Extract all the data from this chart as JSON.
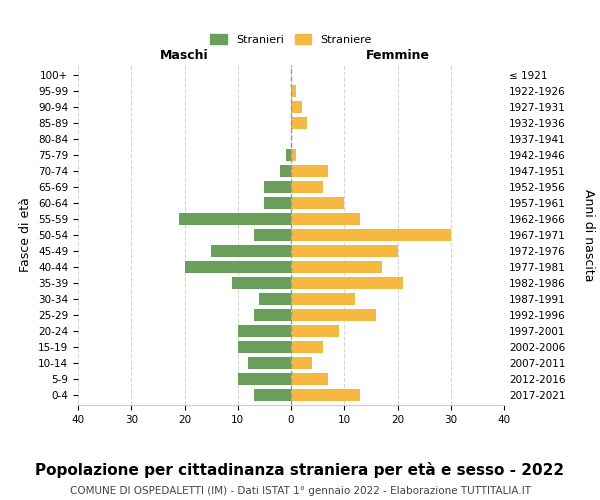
{
  "age_groups": [
    "0-4",
    "5-9",
    "10-14",
    "15-19",
    "20-24",
    "25-29",
    "30-34",
    "35-39",
    "40-44",
    "45-49",
    "50-54",
    "55-59",
    "60-64",
    "65-69",
    "70-74",
    "75-79",
    "80-84",
    "85-89",
    "90-94",
    "95-99",
    "100+"
  ],
  "birth_years": [
    "2017-2021",
    "2012-2016",
    "2007-2011",
    "2002-2006",
    "1997-2001",
    "1992-1996",
    "1987-1991",
    "1982-1986",
    "1977-1981",
    "1972-1976",
    "1967-1971",
    "1962-1966",
    "1957-1961",
    "1952-1956",
    "1947-1951",
    "1942-1946",
    "1937-1941",
    "1932-1936",
    "1927-1931",
    "1922-1926",
    "≤ 1921"
  ],
  "maschi": [
    7,
    10,
    8,
    10,
    10,
    7,
    6,
    11,
    20,
    15,
    7,
    21,
    5,
    5,
    2,
    1,
    0,
    0,
    0,
    0,
    0
  ],
  "femmine": [
    13,
    7,
    4,
    6,
    9,
    16,
    12,
    21,
    17,
    20,
    30,
    13,
    10,
    6,
    7,
    1,
    0,
    3,
    2,
    1,
    0
  ],
  "maschi_color": "#6a9e5b",
  "femmine_color": "#f5b942",
  "background_color": "#ffffff",
  "grid_color": "#cccccc",
  "title": "Popolazione per cittadinanza straniera per età e sesso - 2022",
  "subtitle": "COMUNE DI OSPEDALETTI (IM) - Dati ISTAT 1° gennaio 2022 - Elaborazione TUTTITALIA.IT",
  "xlabel_left": "Maschi",
  "xlabel_right": "Femmine",
  "ylabel_left": "Fasce di età",
  "ylabel_right": "Anni di nascita",
  "legend_maschi": "Stranieri",
  "legend_femmine": "Straniere",
  "xlim": 40,
  "title_fontsize": 11,
  "subtitle_fontsize": 7.5,
  "axis_label_fontsize": 9,
  "tick_fontsize": 7.5,
  "bar_height": 0.75
}
